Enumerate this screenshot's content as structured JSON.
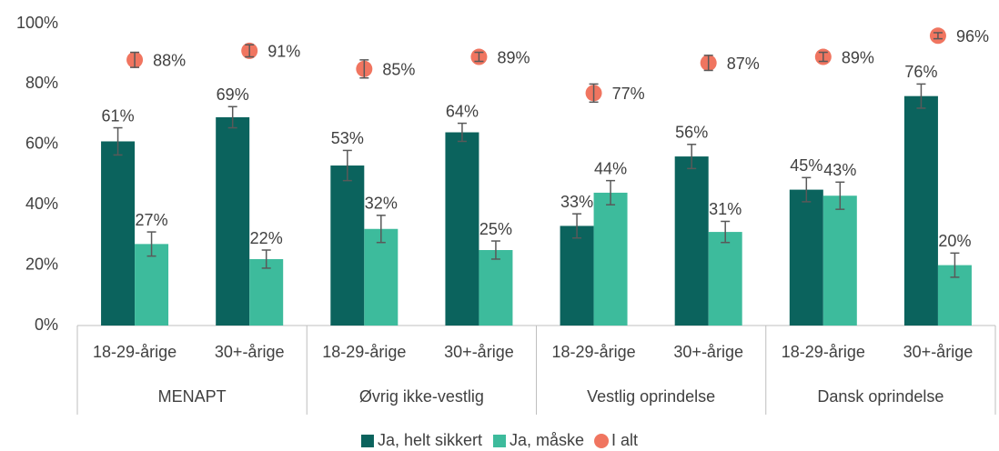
{
  "chart_data": {
    "type": "bar",
    "categories": [
      "18-29-årige",
      "30+-årige",
      "18-29-årige",
      "30+-årige",
      "18-29-årige",
      "30+-årige",
      "18-29-årige",
      "30+-årige"
    ],
    "groups": [
      "MENAPT",
      "Øvrig ikke-vestlig",
      "Vestlig oprindelse",
      "Dansk oprindelse"
    ],
    "series": [
      {
        "name": "Ja, helt sikkert",
        "color": "#0b635d",
        "values": [
          61,
          69,
          53,
          64,
          33,
          56,
          45,
          76
        ],
        "value_labels": [
          "61%",
          "69%",
          "53%",
          "64%",
          "33%",
          "56%",
          "45%",
          "76%"
        ],
        "errors": [
          4.5,
          3.5,
          5,
          3,
          4,
          4,
          4,
          4
        ]
      },
      {
        "name": "Ja, måske",
        "color": "#3dbb9c",
        "values": [
          27,
          22,
          32,
          25,
          44,
          31,
          43,
          20
        ],
        "value_labels": [
          "27%",
          "22%",
          "32%",
          "25%",
          "44%",
          "31%",
          "43%",
          "20%"
        ],
        "errors": [
          4,
          3,
          4.5,
          3,
          4,
          3.5,
          4.5,
          4
        ]
      },
      {
        "name": "I alt",
        "color": "#f07560",
        "type": "scatter",
        "values": [
          88,
          91,
          85,
          89,
          77,
          87,
          89,
          96
        ],
        "value_labels": [
          "88%",
          "91%",
          "85%",
          "89%",
          "77%",
          "87%",
          "89%",
          "96%"
        ],
        "errors": [
          2.5,
          2,
          3,
          1.5,
          3,
          2.5,
          1.5,
          1
        ]
      }
    ],
    "ylim": [
      0,
      100
    ],
    "yticks": [
      {
        "value": 0,
        "label": "0%"
      },
      {
        "value": 20,
        "label": "20%"
      },
      {
        "value": 40,
        "label": "40%"
      },
      {
        "value": 60,
        "label": "60%"
      },
      {
        "value": 80,
        "label": "80%"
      },
      {
        "value": 100,
        "label": "100%"
      }
    ],
    "grid": false,
    "legend": "bottom"
  }
}
